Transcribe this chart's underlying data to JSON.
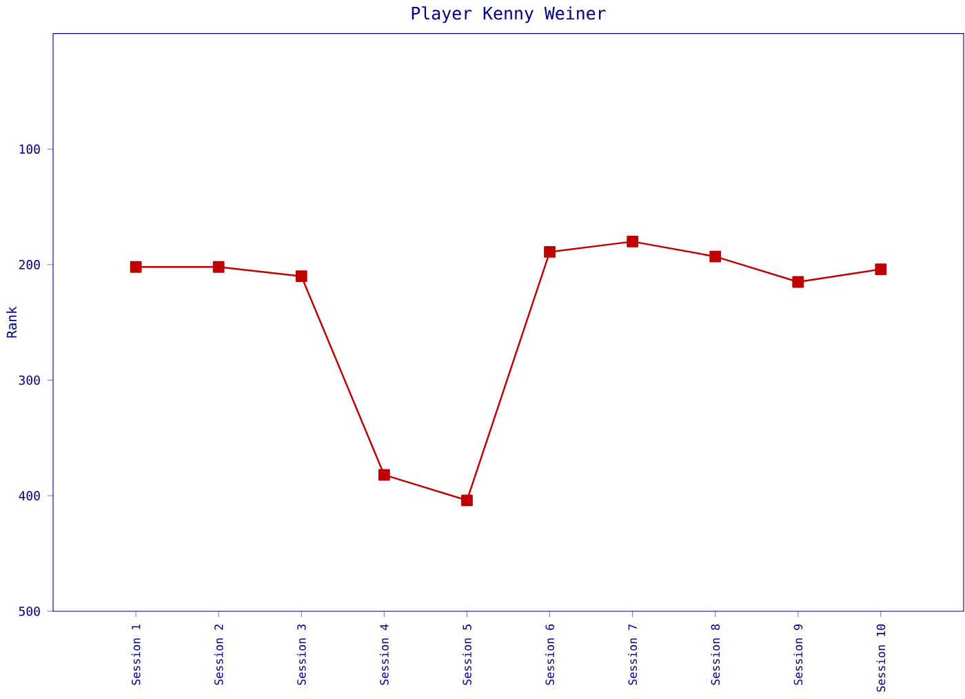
{
  "chart_data": {
    "type": "line",
    "title": "Player Kenny Weiner",
    "ylabel": "Rank",
    "categories": [
      "Session 1",
      "Session 2",
      "Session 3",
      "Session 4",
      "Session 5",
      "Session 6",
      "Session 7",
      "Session 8",
      "Session 9",
      "Session 10"
    ],
    "values": [
      202,
      202,
      210,
      382,
      404,
      189,
      180,
      193,
      215,
      204
    ],
    "color": "#c00000",
    "marker": "square",
    "line_style": "solid",
    "ylim": [
      500,
      0
    ],
    "yticks": [
      100,
      200,
      300,
      400,
      500
    ]
  }
}
